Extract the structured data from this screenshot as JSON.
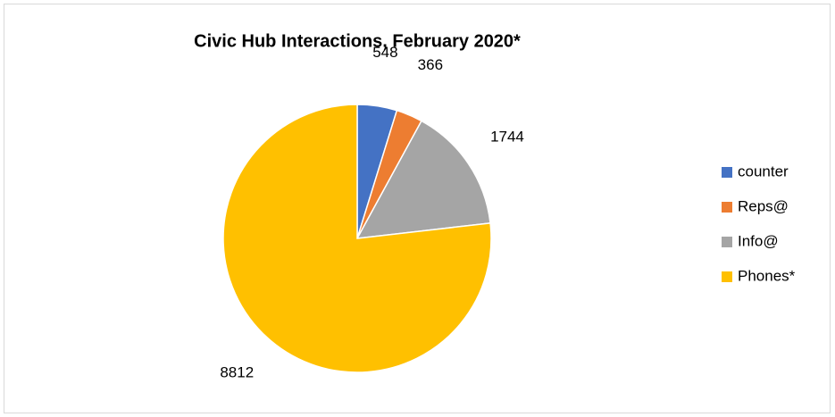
{
  "chart_data": {
    "type": "pie",
    "title": "Civic Hub Interactions, February 2020*",
    "categories": [
      "counter",
      "Reps@",
      "Info@",
      "Phones*"
    ],
    "values": [
      548,
      366,
      1744,
      8812
    ],
    "colors": [
      "#4472c4",
      "#ed7d31",
      "#a5a5a5",
      "#ffc000"
    ],
    "legend": "right"
  }
}
